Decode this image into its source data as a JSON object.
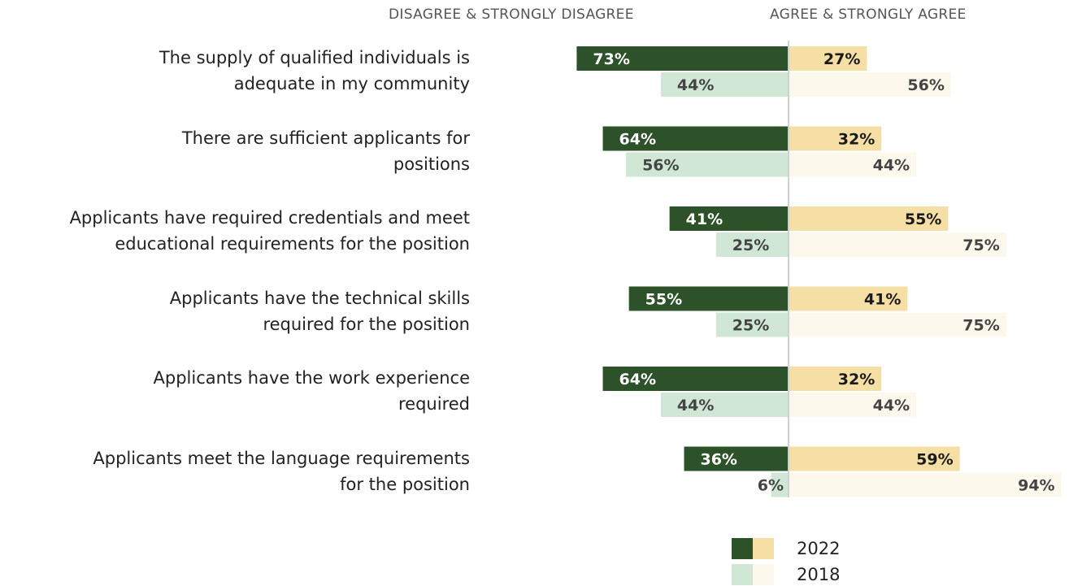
{
  "headers": {
    "left": "DISAGREE & STRONGLY DISAGREE",
    "right": "AGREE & STRONGLY AGREE"
  },
  "chart_data": {
    "type": "bar",
    "orientation": "horizontal-diverging",
    "categories": [
      [
        "The supply of qualified individuals is",
        "adequate in my community"
      ],
      [
        "There are sufficient applicants for",
        "positions"
      ],
      [
        "Applicants have required credentials and meet",
        "educational requirements for the position"
      ],
      [
        "Applicants have the technical skills",
        "required for the position"
      ],
      [
        "Applicants have the work experience",
        "required"
      ],
      [
        "Applicants meet the language requirements",
        "for the position"
      ]
    ],
    "series": [
      {
        "name": "2022",
        "disagree": [
          73,
          64,
          41,
          55,
          64,
          36
        ],
        "agree": [
          27,
          32,
          55,
          41,
          32,
          59
        ]
      },
      {
        "name": "2018",
        "disagree": [
          44,
          56,
          25,
          25,
          44,
          6
        ],
        "agree": [
          56,
          44,
          75,
          75,
          44,
          94
        ]
      }
    ],
    "value_suffix": "%",
    "xlim": [
      0,
      100
    ],
    "legend": "bottom",
    "colors": {
      "2022_disagree": "#2d5128",
      "2022_agree": "#f6dfa4",
      "2018_disagree": "#cfe7d4",
      "2018_agree": "#fcf8ec",
      "axis": "#d0d0d0"
    }
  }
}
